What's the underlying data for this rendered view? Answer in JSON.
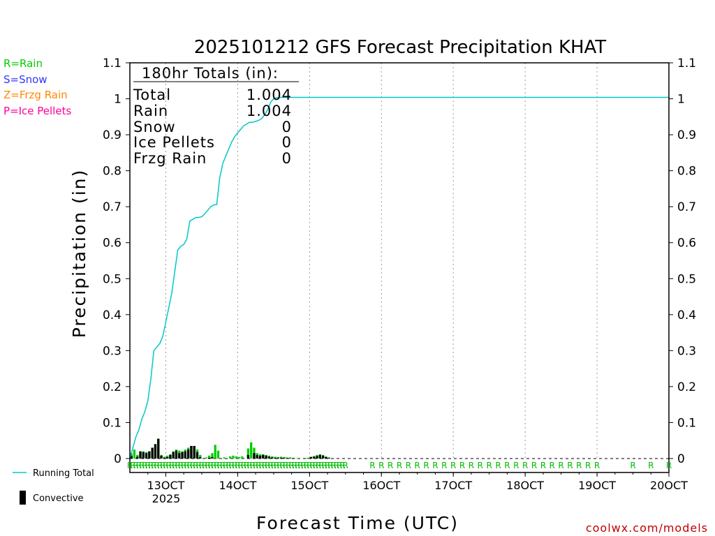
{
  "chart_data": {
    "type": "bar",
    "title": "2025101212 GFS Forecast Precipitation KHAT",
    "xlabel": "Forecast Time (UTC)",
    "ylabel": "Precipitation (in)",
    "ylim": [
      0,
      1.1
    ],
    "xlim_hours": [
      0,
      180
    ],
    "y_ticks": [
      0,
      0.1,
      0.2,
      0.3,
      0.4,
      0.5,
      0.6,
      0.7,
      0.8,
      0.9,
      1,
      1.1
    ],
    "y_tick_labels": [
      "0",
      "0.1",
      "0.2",
      "0.3",
      "0.4",
      "0.5",
      "0.6",
      "0.7",
      "0.8",
      "0.9",
      "1",
      "1.1"
    ],
    "x_ticks": [
      {
        "hour": 12,
        "label": "13OCT"
      },
      {
        "hour": 36,
        "label": "14OCT"
      },
      {
        "hour": 60,
        "label": "15OCT"
      },
      {
        "hour": 84,
        "label": "16OCT"
      },
      {
        "hour": 108,
        "label": "17OCT"
      },
      {
        "hour": 132,
        "label": "18OCT"
      },
      {
        "hour": 156,
        "label": "19OCT"
      },
      {
        "hour": 180,
        "label": "20OCT"
      }
    ],
    "year_label": "2025",
    "ptype_legend": [
      {
        "text": "R=Rain",
        "color": "#00cc00"
      },
      {
        "text": "S=Snow",
        "color": "#3333ff"
      },
      {
        "text": "Z=Frzg Rain",
        "color": "#ff8800"
      },
      {
        "text": "P=Ice Pellets",
        "color": "#ff0099"
      }
    ],
    "series_legend": {
      "running_total": "Running Total",
      "convective": "Convective"
    },
    "totals": {
      "heading": "180hr Totals (in):",
      "rows": [
        {
          "label": "Total",
          "value": "1.004"
        },
        {
          "label": "Rain",
          "value": "1.004"
        },
        {
          "label": "Snow",
          "value": "0"
        },
        {
          "label": "Ice Pellets",
          "value": "0"
        },
        {
          "label": "Frzg Rain",
          "value": "0"
        }
      ]
    },
    "credit": "coolwx.com/models",
    "colors": {
      "line": "#00c8c8",
      "bar_total": "#00cc00",
      "bar_convective": "#000000",
      "grid": "#999999"
    },
    "running_total": {
      "hours": [
        0,
        1,
        2,
        3,
        4,
        5,
        6,
        7,
        8,
        9,
        10,
        11,
        12,
        13,
        14,
        15,
        16,
        17,
        18,
        19,
        20,
        21,
        22,
        23,
        24,
        25,
        26,
        27,
        28,
        29,
        30,
        31,
        32,
        33,
        34,
        35,
        36,
        37,
        38,
        39,
        40,
        41,
        42,
        43,
        44,
        45,
        46,
        47,
        48,
        49,
        50,
        51,
        52,
        53,
        54,
        55,
        56,
        57,
        58,
        59,
        60,
        61,
        62,
        63,
        64,
        65,
        66,
        67,
        68,
        69,
        70,
        71,
        72,
        180
      ],
      "values": [
        0,
        0.03,
        0.06,
        0.08,
        0.11,
        0.13,
        0.16,
        0.22,
        0.3,
        0.31,
        0.32,
        0.34,
        0.38,
        0.42,
        0.46,
        0.52,
        0.58,
        0.59,
        0.595,
        0.61,
        0.66,
        0.665,
        0.67,
        0.67,
        0.672,
        0.68,
        0.69,
        0.7,
        0.705,
        0.706,
        0.78,
        0.82,
        0.84,
        0.86,
        0.88,
        0.895,
        0.905,
        0.915,
        0.925,
        0.93,
        0.935,
        0.935,
        0.937,
        0.94,
        0.945,
        0.955,
        0.97,
        0.99,
        1.0,
        1.003,
        1.004,
        1.004,
        1.004,
        1.004,
        1.004,
        1.004,
        1.004,
        1.004,
        1.004,
        1.004,
        1.004,
        1.004,
        1.004,
        1.004,
        1.004,
        1.004,
        1.004,
        1.004,
        1.004,
        1.004,
        1.004,
        1.004,
        1.004,
        1.004
      ]
    },
    "bars": {
      "hours": [
        0,
        1,
        2,
        3,
        4,
        5,
        6,
        7,
        8,
        9,
        10,
        11,
        12,
        13,
        14,
        15,
        16,
        17,
        18,
        19,
        20,
        21,
        22,
        23,
        24,
        25,
        26,
        27,
        28,
        29,
        30,
        31,
        32,
        33,
        34,
        35,
        36,
        37,
        38,
        39,
        40,
        41,
        42,
        43,
        44,
        45,
        46,
        47,
        48,
        49,
        50,
        51,
        52,
        53,
        54,
        55,
        56,
        57,
        58,
        59,
        60,
        61,
        62,
        63,
        64,
        65,
        66,
        67,
        68,
        69,
        70,
        71,
        72
      ],
      "total": [
        0.015,
        0.025,
        0.01,
        0.02,
        0.02,
        0.018,
        0.02,
        0.03,
        0.04,
        0.055,
        0.01,
        0.005,
        0.008,
        0.012,
        0.02,
        0.025,
        0.022,
        0.02,
        0.025,
        0.03,
        0.035,
        0.035,
        0.025,
        0.01,
        0.0,
        0.003,
        0.008,
        0.015,
        0.038,
        0.022,
        0.0,
        0.003,
        0.0,
        0.006,
        0.008,
        0.006,
        0.004,
        0.006,
        0.0,
        0.028,
        0.045,
        0.03,
        0.015,
        0.012,
        0.012,
        0.01,
        0.008,
        0.006,
        0.005,
        0.004,
        0.005,
        0.004,
        0.003,
        0.003,
        0.002,
        0.001,
        0.0,
        0.0,
        0.002,
        0.002,
        0.005,
        0.007,
        0.01,
        0.012,
        0.01,
        0.006,
        0.003,
        0.0,
        0.0,
        0.0,
        0.0,
        0.0,
        0.0
      ],
      "convective": [
        0.008,
        0.0,
        0.005,
        0.02,
        0.018,
        0.015,
        0.02,
        0.03,
        0.04,
        0.055,
        0.008,
        0.002,
        0.004,
        0.01,
        0.018,
        0.022,
        0.015,
        0.018,
        0.02,
        0.025,
        0.035,
        0.035,
        0.018,
        0.004,
        0.0,
        0.0,
        0.002,
        0.004,
        0.0,
        0.0,
        0.0,
        0.0,
        0.0,
        0.0,
        0.0,
        0.0,
        0.0,
        0.0,
        0.0,
        0.01,
        0.0,
        0.015,
        0.01,
        0.008,
        0.01,
        0.008,
        0.005,
        0.003,
        0.002,
        0.002,
        0.002,
        0.002,
        0.001,
        0.001,
        0.001,
        0.0,
        0.0,
        0.0,
        0.0,
        0.001,
        0.004,
        0.005,
        0.007,
        0.01,
        0.008,
        0.004,
        0.002,
        0.0,
        0.0,
        0.0,
        0.0,
        0.0,
        0.0
      ]
    },
    "ptype_marks": {
      "label": "R",
      "hours": [
        0,
        1,
        2,
        3,
        4,
        5,
        6,
        7,
        8,
        9,
        10,
        11,
        12,
        13,
        14,
        15,
        16,
        17,
        18,
        19,
        20,
        21,
        22,
        23,
        24,
        25,
        26,
        27,
        28,
        29,
        30,
        31,
        32,
        33,
        34,
        35,
        36,
        37,
        38,
        39,
        40,
        41,
        42,
        43,
        44,
        45,
        46,
        47,
        48,
        49,
        50,
        51,
        52,
        53,
        54,
        55,
        56,
        57,
        58,
        59,
        60,
        61,
        62,
        63,
        64,
        65,
        66,
        67,
        68,
        69,
        70,
        71,
        72,
        81,
        84,
        87,
        90,
        93,
        96,
        99,
        102,
        105,
        108,
        111,
        114,
        117,
        120,
        123,
        126,
        129,
        132,
        135,
        138,
        141,
        144,
        147,
        150,
        153,
        156,
        168,
        174,
        180
      ]
    }
  }
}
